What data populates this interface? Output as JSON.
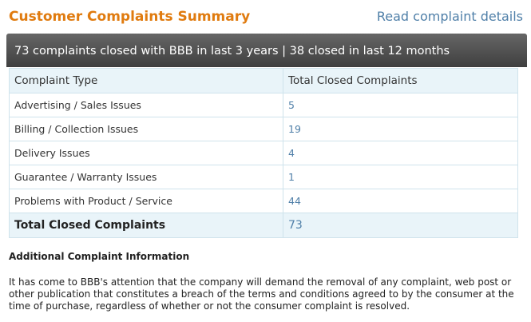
{
  "header": {
    "title": "Customer Complaints Summary",
    "read_link": "Read complaint details"
  },
  "summary": {
    "text": "73 complaints closed with BBB in last 3 years | 38 closed in last 12 months"
  },
  "table": {
    "columns": [
      "Complaint Type",
      "Total Closed Complaints"
    ],
    "rows": [
      {
        "type": "Advertising / Sales Issues",
        "count": "5"
      },
      {
        "type": "Billing / Collection Issues",
        "count": "19"
      },
      {
        "type": "Delivery Issues",
        "count": "4"
      },
      {
        "type": "Guarantee / Warranty Issues",
        "count": "1"
      },
      {
        "type": "Problems with Product / Service",
        "count": "44"
      }
    ],
    "total": {
      "label": "Total Closed Complaints",
      "count": "73"
    }
  },
  "additional": {
    "heading": "Additional Complaint Information",
    "text": "It has come to BBB's attention that the company will demand the removal of any complaint, web post or other publication that constitutes a breach of the terms and conditions agreed to by the consumer at the time of purchase, regardless of whether or not the consumer complaint is resolved."
  },
  "colors": {
    "title": "#e07b0f",
    "link": "#4f7fa8",
    "bar": "#4a4a4a",
    "table_header_bg": "#e9f4f9"
  }
}
